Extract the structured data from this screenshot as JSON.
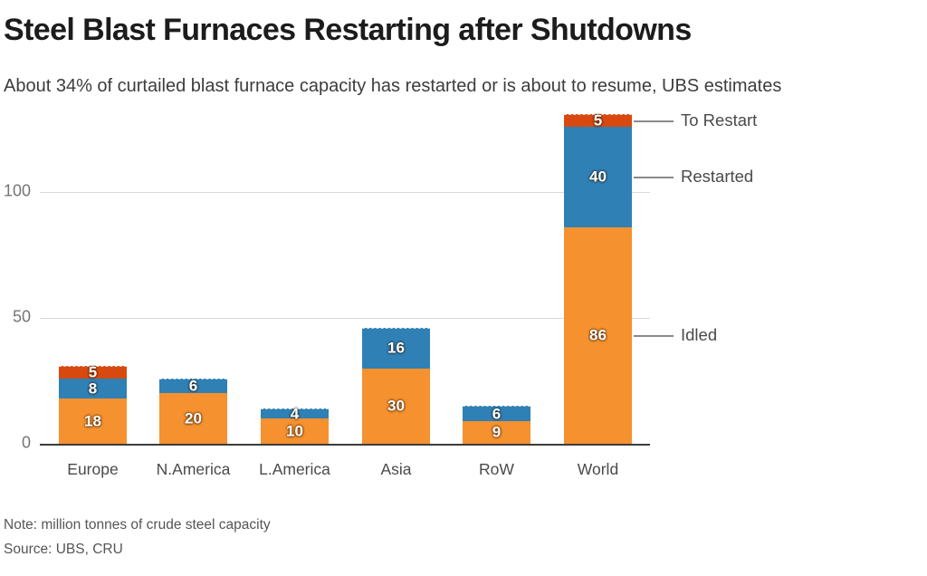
{
  "footer": {
    "note": "Note: million tonnes of crude steel capacity",
    "source": "Source: UBS, CRU"
  },
  "colors": {
    "idled": "#F5912E",
    "restarted": "#2F80B5",
    "to_restart": "#D8490F",
    "gridline": "#d9d9d9",
    "axis": "#3c3c3c",
    "connector": "#8a8a8a",
    "title_text": "#1c1c1c",
    "label_text": "#4a4a4a"
  },
  "chart_data": {
    "type": "bar",
    "stacked": true,
    "title": "Steel Blast Furnaces Restarting after Shutdowns",
    "subtitle": "About 34% of curtailed blast furnace capacity has restarted or is about to resume, UBS estimates",
    "categories": [
      "Europe",
      "N.America",
      "L.America",
      "Asia",
      "RoW",
      "World"
    ],
    "series": [
      {
        "name": "Idled",
        "color": "#F5912E",
        "values": [
          18,
          20,
          10,
          30,
          9,
          86
        ]
      },
      {
        "name": "Restarted",
        "color": "#2F80B5",
        "values": [
          8,
          6,
          4,
          16,
          6,
          40
        ]
      },
      {
        "name": "To Restart",
        "color": "#D8490F",
        "values": [
          5,
          0,
          0,
          0,
          0,
          5
        ]
      }
    ],
    "yticks": [
      0,
      50,
      100
    ],
    "ylim": [
      0,
      137
    ],
    "grid": true,
    "legend_position": "right-annotations",
    "legend_labels": [
      "To Restart",
      "Restarted",
      "Idled"
    ],
    "unit_note": "million tonnes of crude steel capacity"
  }
}
